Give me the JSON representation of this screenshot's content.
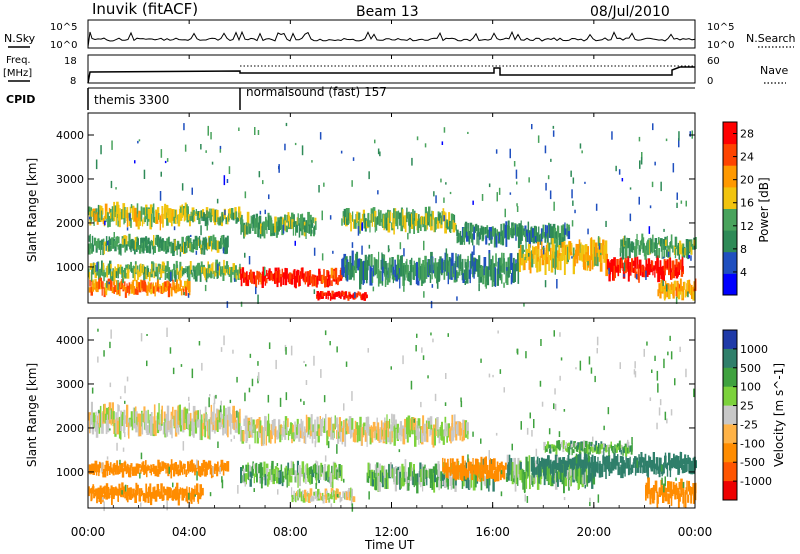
{
  "header": {
    "station": "Inuvik (fitACF)",
    "beam": "Beam 13",
    "date": "08/Jul/2010"
  },
  "top_panels": {
    "nsky_label": "N.Sky",
    "nsky_ticks": [
      "10^5",
      "10^0"
    ],
    "nsearch_label": "N.Search",
    "nsearch_ticks": [
      "10^5",
      "10^0"
    ],
    "freq_label_1": "Freq.",
    "freq_label_2": "[MHz]",
    "freq_ticks": [
      "18",
      "8"
    ],
    "nave_label": "Nave",
    "nave_ticks": [
      "60",
      "0"
    ],
    "cpid_label": "CPID",
    "cpid_segments": [
      {
        "label": "themis 3300",
        "start_hour": 0
      },
      {
        "label": "normalsound (fast) 157",
        "start_hour": 6
      }
    ]
  },
  "x_axis": {
    "label": "Time UT",
    "ticks": [
      "00:00",
      "04:00",
      "08:00",
      "12:00",
      "16:00",
      "20:00",
      "00:00"
    ],
    "range_hours": [
      0,
      24
    ]
  },
  "chart_data": [
    {
      "type": "heatmap",
      "title": "",
      "quantity": "Power",
      "ylabel": "Slant Range [km]",
      "yticks": [
        "1000",
        "2000",
        "3000",
        "4000"
      ],
      "ylim": [
        180,
        4500
      ],
      "xlim_hours": [
        0,
        24
      ],
      "colorbar": {
        "label": "Power [dB]",
        "ticks": [
          "4",
          "8",
          "12",
          "16",
          "20",
          "24",
          "28"
        ],
        "range": [
          0,
          30
        ],
        "colors": [
          "#0000ff",
          "#1f4fbf",
          "#2e8a57",
          "#49a35c",
          "#f1c40f",
          "#ff9900",
          "#ff4400",
          "#ff0000"
        ]
      },
      "bands": [
        {
          "t0": 0.0,
          "t1": 4.0,
          "r0": 1900,
          "r1": 2400,
          "value": 16
        },
        {
          "t0": 4.0,
          "t1": 6.0,
          "r0": 1950,
          "r1": 2350,
          "value": 14
        },
        {
          "t0": 6.0,
          "t1": 9.0,
          "r0": 1700,
          "r1": 2200,
          "value": 12
        },
        {
          "t0": 10.0,
          "t1": 14.5,
          "r0": 1800,
          "r1": 2300,
          "value": 14
        },
        {
          "t0": 14.5,
          "t1": 19.0,
          "r0": 1500,
          "r1": 2000,
          "value": 10
        },
        {
          "t0": 0.0,
          "t1": 5.5,
          "r0": 1300,
          "r1": 1700,
          "value": 12
        },
        {
          "t0": 0.0,
          "t1": 6.0,
          "r0": 700,
          "r1": 1100,
          "value": 14
        },
        {
          "t0": 0.0,
          "t1": 4.0,
          "r0": 350,
          "r1": 700,
          "value": 22
        },
        {
          "t0": 6.0,
          "t1": 10.0,
          "r0": 550,
          "r1": 950,
          "value": 26
        },
        {
          "t0": 9.0,
          "t1": 11.0,
          "r0": 250,
          "r1": 450,
          "value": 28
        },
        {
          "t0": 10.0,
          "t1": 17.0,
          "r0": 600,
          "r1": 1300,
          "value": 10
        },
        {
          "t0": 17.0,
          "t1": 20.5,
          "r0": 900,
          "r1": 1600,
          "value": 18
        },
        {
          "t0": 20.5,
          "t1": 23.5,
          "r0": 700,
          "r1": 1200,
          "value": 27
        },
        {
          "t0": 21.0,
          "t1": 24.0,
          "r0": 1200,
          "r1": 1700,
          "value": 12
        },
        {
          "t0": 22.5,
          "t1": 24.0,
          "r0": 250,
          "r1": 700,
          "value": 20
        }
      ]
    },
    {
      "type": "heatmap",
      "title": "",
      "quantity": "Velocity",
      "ylabel": "Slant Range [km]",
      "yticks": [
        "1000",
        "2000",
        "3000",
        "4000"
      ],
      "ylim": [
        180,
        4500
      ],
      "xlim_hours": [
        0,
        24
      ],
      "colorbar": {
        "label": "Velocity [m s^-1]",
        "ticks": [
          "1000",
          "500",
          "100",
          "25",
          "-25",
          "-100",
          "-500",
          "-1000"
        ],
        "colors": [
          "#1f3aa8",
          "#2f7f6a",
          "#3fa23f",
          "#7cd23c",
          "#c8c8c8",
          "#ffb347",
          "#ff8c00",
          "#ff5500",
          "#ee0000"
        ]
      },
      "bands": [
        {
          "t0": 0.0,
          "t1": 6.0,
          "r0": 1800,
          "r1": 2500,
          "value": 0
        },
        {
          "t0": 6.0,
          "t1": 15.0,
          "r0": 1650,
          "r1": 2250,
          "value": 0
        },
        {
          "t0": 0.0,
          "t1": 5.5,
          "r0": 900,
          "r1": 1250,
          "value": -300
        },
        {
          "t0": 0.0,
          "t1": 4.5,
          "r0": 300,
          "r1": 700,
          "value": -300
        },
        {
          "t0": 6.0,
          "t1": 10.0,
          "r0": 700,
          "r1": 1200,
          "value": 60
        },
        {
          "t0": 8.0,
          "t1": 10.5,
          "r0": 300,
          "r1": 600,
          "value": 0
        },
        {
          "t0": 11.0,
          "t1": 16.0,
          "r0": 600,
          "r1": 1200,
          "value": 60
        },
        {
          "t0": 14.0,
          "t1": 16.5,
          "r0": 800,
          "r1": 1300,
          "value": -300
        },
        {
          "t0": 16.5,
          "t1": 20.0,
          "r0": 600,
          "r1": 1300,
          "value": 60
        },
        {
          "t0": 17.5,
          "t1": 24.0,
          "r0": 900,
          "r1": 1400,
          "value": 300
        },
        {
          "t0": 18.0,
          "t1": 21.5,
          "r0": 1400,
          "r1": 1700,
          "value": 60
        },
        {
          "t0": 22.0,
          "t1": 24.0,
          "r0": 250,
          "r1": 800,
          "value": -300
        }
      ]
    }
  ]
}
